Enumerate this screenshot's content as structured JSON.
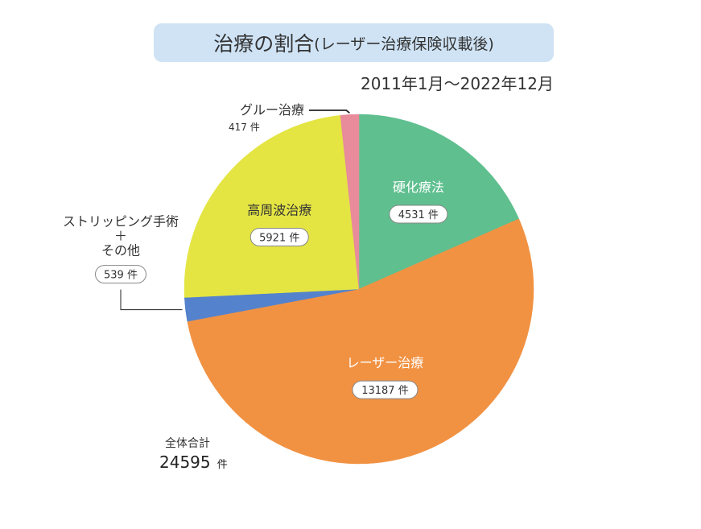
{
  "title": {
    "main": "治療の割合",
    "sub": "(レーザー治療保険収載後)"
  },
  "period": "2011年1月～2022年12月",
  "total": {
    "label": "全体合計",
    "value": "24595",
    "unit": "件"
  },
  "colors": {
    "sclerotherapy": "#5fbf8f",
    "laser": "#f19243",
    "stripping": "#5482cd",
    "rf": "#e4e543",
    "glue": "#e88b9b",
    "title_bg": "#cfe3f5"
  },
  "chart_data": {
    "type": "pie",
    "start": "12 o'clock",
    "direction": "clockwise",
    "slices": [
      {
        "key": "sclerotherapy",
        "label": "硬化療法",
        "value": 4531,
        "value_text": "4531 件",
        "color": "#5fbf8f"
      },
      {
        "key": "laser",
        "label": "レーザー治療",
        "value": 13187,
        "value_text": "13187 件",
        "color": "#f19243"
      },
      {
        "key": "stripping",
        "label": "ストリッピング手術\n＋\nその他",
        "value": 539,
        "value_text": "539 件",
        "color": "#5482cd"
      },
      {
        "key": "rf",
        "label": "高周波治療",
        "value": 5921,
        "value_text": "5921 件",
        "color": "#e4e543"
      },
      {
        "key": "glue",
        "label": "グルー治療",
        "value": 417,
        "value_text": "417 件",
        "color": "#e88b9b"
      }
    ]
  }
}
